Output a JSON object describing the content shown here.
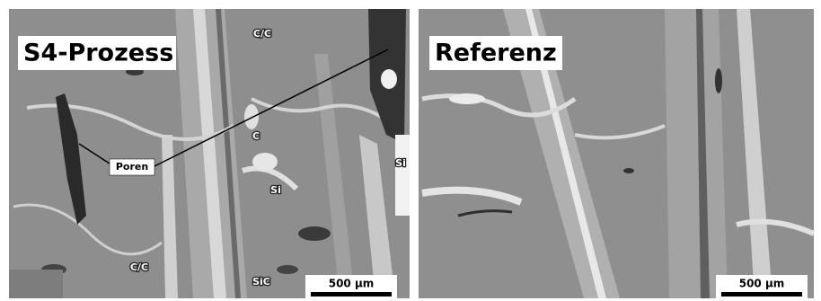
{
  "panels": [
    {
      "title": "S4-Prozess",
      "labels": [
        "C/C",
        "C",
        "Poren",
        "Si",
        "Si",
        "C/C",
        "SiC"
      ],
      "scale_bar": "500 µm"
    },
    {
      "title": "Referenz",
      "scale_bar": "500 µm"
    }
  ]
}
